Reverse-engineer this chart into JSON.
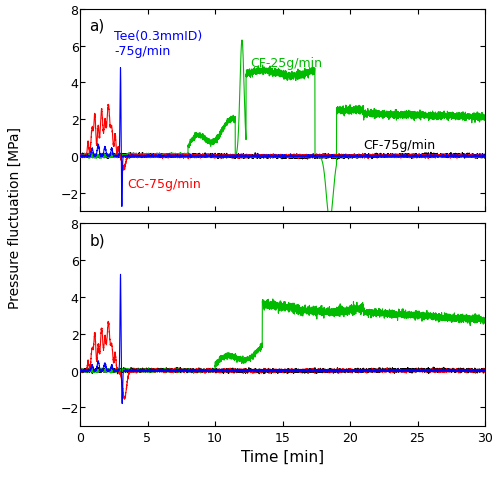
{
  "title_a": "a)",
  "title_b": "b)",
  "xlabel": "Time [min]",
  "ylabel": "Pressure fluctuation [MPa]",
  "xlim": [
    0,
    30
  ],
  "ylim_a": [
    -3,
    8
  ],
  "ylim_b": [
    -3,
    8
  ],
  "yticks_a": [
    -2,
    0,
    2,
    4,
    6,
    8
  ],
  "yticks_b": [
    -2,
    0,
    2,
    4,
    6,
    8
  ],
  "xticks": [
    0,
    5,
    10,
    15,
    20,
    25,
    30
  ],
  "colors": {
    "blue": "#0000FF",
    "red": "#FF0000",
    "green": "#00BB00",
    "black": "#000000"
  },
  "ann_a_tee_x": 2.7,
  "ann_a_tee_y": 6.5,
  "ann_a_cf25_x": 12.5,
  "ann_a_cf25_y": 5.2,
  "ann_a_cf75_x": 21.5,
  "ann_a_cf75_y": 0.55,
  "ann_a_cc_x": 3.7,
  "ann_a_cc_y": -1.4,
  "ann_b_label": "b)",
  "fontsize_ann": 9,
  "fontsize_label": 11,
  "fontsize_ylabel": 10
}
